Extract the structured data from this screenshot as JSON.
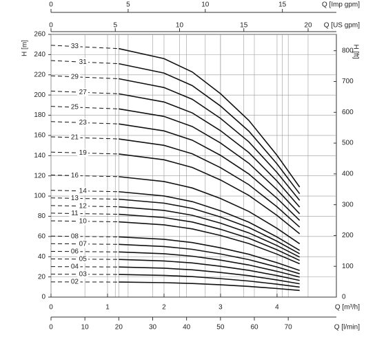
{
  "chart_data": {
    "type": "line",
    "xlabel": "Q [m³/h]",
    "ylabel": "H [m]",
    "y2label": "H [ft]",
    "x": [
      0,
      1.2,
      2,
      2.5,
      3,
      3.5,
      4,
      4.4
    ],
    "xlim": [
      0,
      5.05
    ],
    "xticks": [
      0,
      1,
      2,
      3,
      4
    ],
    "ylim": [
      0,
      260
    ],
    "yticks": [
      0,
      20,
      40,
      60,
      80,
      100,
      120,
      140,
      160,
      180,
      200,
      220,
      240,
      260
    ],
    "y2lim": [
      0,
      853
    ],
    "y2ticks": [
      0,
      100,
      200,
      300,
      400,
      500,
      600,
      700,
      800
    ],
    "x2": {
      "label": "Q [l/min]",
      "lim": [
        0,
        84.2
      ],
      "ticks": [
        0,
        10,
        20,
        30,
        40,
        50,
        60,
        70
      ]
    },
    "x3": {
      "label": "Q [Imp gpm]",
      "lim": [
        0,
        18.5
      ],
      "ticks": [
        0,
        5,
        10,
        15
      ]
    },
    "x4": {
      "label": "Q [US gpm]",
      "lim": [
        0,
        22.2
      ],
      "ticks": [
        0,
        5,
        10,
        15,
        20
      ]
    },
    "grid": true,
    "dash_first_segment": true,
    "series": [
      {
        "name": "02",
        "color": "#111111",
        "values": [
          15.1,
          14.9,
          14.3,
          13.5,
          12.2,
          10.6,
          8.5,
          6.6
        ]
      },
      {
        "name": "03",
        "color": "#111111",
        "values": [
          22.7,
          22.4,
          21.5,
          20.3,
          18.3,
          15.9,
          12.8,
          9.9
        ]
      },
      {
        "name": "04",
        "color": "#111111",
        "values": [
          30.2,
          29.8,
          28.6,
          27,
          24.4,
          21.2,
          17,
          13.2
        ]
      },
      {
        "name": "05",
        "color": "#111111",
        "values": [
          37.8,
          37.3,
          35.8,
          33.8,
          30.5,
          26.5,
          21.3,
          16.5
        ]
      },
      {
        "name": "06",
        "color": "#111111",
        "values": [
          45.3,
          44.7,
          42.9,
          40.5,
          36.6,
          31.8,
          25.5,
          19.8
        ]
      },
      {
        "name": "07",
        "color": "#111111",
        "values": [
          52.9,
          52.2,
          50.1,
          47.3,
          42.7,
          37.1,
          29.8,
          23.1
        ]
      },
      {
        "name": "08",
        "color": "#111111",
        "values": [
          60.4,
          59.6,
          57.2,
          54,
          48.8,
          42.4,
          34,
          26.4
        ]
      },
      {
        "name": "10",
        "color": "#111111",
        "values": [
          75.5,
          74.5,
          71.5,
          67.5,
          61,
          53,
          42.5,
          33
        ]
      },
      {
        "name": "11",
        "color": "#111111",
        "values": [
          83.1,
          82,
          78.7,
          74.3,
          67.1,
          58.3,
          46.8,
          36.3
        ]
      },
      {
        "name": "12",
        "color": "#111111",
        "values": [
          90.6,
          89.4,
          85.8,
          81,
          73.2,
          63.6,
          51,
          39.6
        ]
      },
      {
        "name": "13",
        "color": "#111111",
        "values": [
          98.2,
          96.9,
          93,
          87.8,
          79.3,
          68.9,
          55.3,
          42.9
        ]
      },
      {
        "name": "14",
        "color": "#111111",
        "values": [
          105.7,
          104.3,
          100.1,
          94.5,
          85.4,
          74.2,
          59.5,
          46.2
        ]
      },
      {
        "name": "16",
        "color": "#111111",
        "values": [
          120.8,
          119.2,
          114.4,
          108,
          97.6,
          84.8,
          68,
          52.8
        ]
      },
      {
        "name": "19",
        "color": "#111111",
        "values": [
          143.5,
          141.6,
          135.9,
          128.3,
          115.9,
          100.7,
          80.8,
          62.7
        ]
      },
      {
        "name": "21",
        "color": "#111111",
        "values": [
          158.6,
          156.5,
          150.2,
          141.8,
          128.1,
          111.3,
          89.3,
          69.3
        ]
      },
      {
        "name": "23",
        "color": "#111111",
        "values": [
          173.7,
          171.4,
          164.5,
          155.3,
          140.3,
          121.9,
          97.8,
          75.9
        ]
      },
      {
        "name": "25",
        "color": "#111111",
        "values": [
          188.8,
          186.3,
          178.8,
          168.8,
          152.5,
          132.5,
          106.3,
          82.5
        ]
      },
      {
        "name": "27",
        "color": "#111111",
        "values": [
          203.9,
          201.2,
          193.1,
          182.3,
          164.7,
          143.1,
          114.8,
          89.1
        ]
      },
      {
        "name": "29",
        "color": "#111111",
        "values": [
          219,
          216.1,
          207.4,
          195.8,
          176.9,
          153.7,
          123.3,
          95.7
        ]
      },
      {
        "name": "31",
        "color": "#111111",
        "values": [
          234.1,
          231,
          221.7,
          209.3,
          189.1,
          164.3,
          131.8,
          102.3
        ]
      },
      {
        "name": "33",
        "color": "#111111",
        "values": [
          249.2,
          245.9,
          236,
          222.8,
          201.3,
          174.9,
          140.3,
          108.9
        ]
      }
    ]
  }
}
